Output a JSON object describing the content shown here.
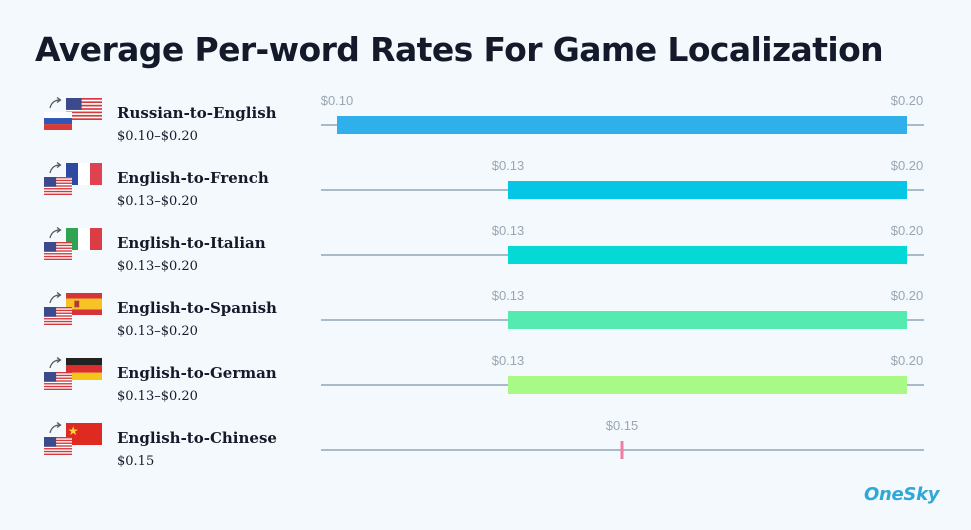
{
  "title": "Average Per-word Rates For Game Localization",
  "logo": "OneSky",
  "chart_data": {
    "type": "bar",
    "subtype": "range",
    "title": "Average Per-word Rates For Game Localization",
    "xlim": [
      0.1,
      0.2
    ],
    "unit": "$",
    "categories": [
      "Russian-to-English",
      "English-to-French",
      "English-to-Italian",
      "English-to-Spanish",
      "English-to-German",
      "English-to-Chinese"
    ],
    "ranges": [
      {
        "label": "Russian-to-English",
        "range_text": "$0.10–$0.20",
        "low": 0.1,
        "high": 0.2,
        "low_label": "$0.10",
        "high_label": "$0.20",
        "color": "#30b0ea"
      },
      {
        "label": "English-to-French",
        "range_text": "$0.13–$0.20",
        "low": 0.13,
        "high": 0.2,
        "low_label": "$0.13",
        "high_label": "$0.20",
        "color": "#06c6e6"
      },
      {
        "label": "English-to-Italian",
        "range_text": "$0.13–$0.20",
        "low": 0.13,
        "high": 0.2,
        "low_label": "$0.13",
        "high_label": "$0.20",
        "color": "#05d9d6"
      },
      {
        "label": "English-to-Spanish",
        "range_text": "$0.13–$0.20",
        "low": 0.13,
        "high": 0.2,
        "low_label": "$0.13",
        "high_label": "$0.20",
        "color": "#55eab0"
      },
      {
        "label": "English-to-German",
        "range_text": "$0.13–$0.20",
        "low": 0.13,
        "high": 0.2,
        "low_label": "$0.13",
        "high_label": "$0.20",
        "color": "#a8f986"
      },
      {
        "label": "English-to-Chinese",
        "range_text": "$0.15",
        "low": 0.15,
        "high": 0.15,
        "low_label": "$0.15",
        "high_label": "",
        "color": "#ef7fa0"
      }
    ],
    "flags": [
      {
        "source": "russia-flag-icon",
        "target": "usa-flag-icon"
      },
      {
        "source": "usa-flag-icon",
        "target": "france-flag-icon"
      },
      {
        "source": "usa-flag-icon",
        "target": "italy-flag-icon"
      },
      {
        "source": "usa-flag-icon",
        "target": "spain-flag-icon"
      },
      {
        "source": "usa-flag-icon",
        "target": "germany-flag-icon"
      },
      {
        "source": "usa-flag-icon",
        "target": "china-flag-icon"
      }
    ]
  }
}
